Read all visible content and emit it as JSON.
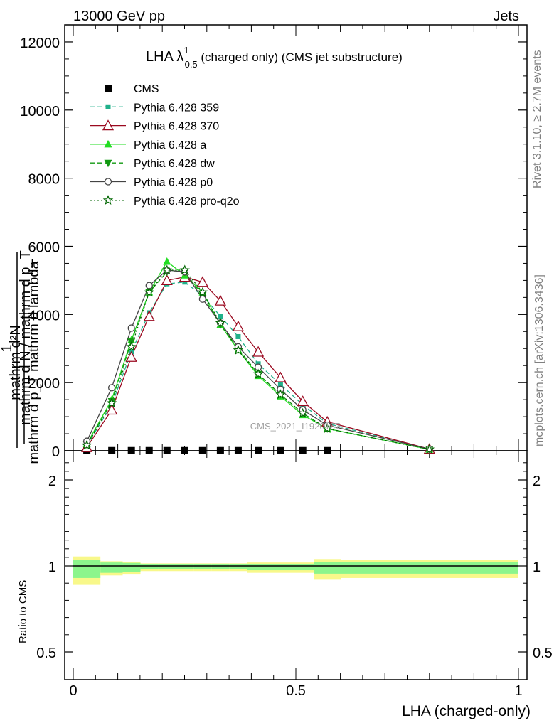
{
  "header": {
    "left": "13000 GeV pp",
    "right": "Jets"
  },
  "side_labels": {
    "rivet": "Rivet 3.1.10, ≥ 2.7M events",
    "mcplots": "mcplots.cern.ch [arXiv:1306.3436]"
  },
  "watermark": "CMS_2021_I1920187",
  "chart_data": [
    {
      "type": "line",
      "title_main": "LHA λ",
      "title_sup": "1",
      "title_sub": "0.5",
      "title_rest": " (charged only) (CMS jet substructure)",
      "ylabel_num": "mathrm d²N",
      "ylabel_den": "mathrm d p_T mathrm d lambda",
      "ylabel_num2": "1",
      "ylabel_den2": "mathrm d N / mathrm d p_T",
      "xlim": [
        0,
        1
      ],
      "ylim": [
        0,
        12500
      ],
      "yticks": [
        0,
        2000,
        4000,
        6000,
        8000,
        10000,
        12000
      ],
      "ytick_labels": [
        "0",
        "2000",
        "4000",
        "6000",
        "8000",
        "10000",
        "12000"
      ],
      "legend_position": "top-left",
      "x": [
        0.0305,
        0.0865,
        0.1305,
        0.1705,
        0.2105,
        0.2505,
        0.2905,
        0.3305,
        0.3705,
        0.4155,
        0.4655,
        0.5155,
        0.5705,
        0.8
      ],
      "series": [
        {
          "name": "CMS",
          "color": "#000000",
          "marker": "square",
          "line": "none",
          "values": [
            5,
            5,
            5,
            5,
            5,
            5,
            5,
            5,
            5,
            5,
            5,
            5,
            5,
            null
          ]
        },
        {
          "name": "Pythia 6.428 359",
          "color": "#20b08a",
          "marker": "square-small",
          "line": "dashed",
          "values": [
            150,
            1350,
            2900,
            4050,
            4900,
            4950,
            4550,
            3950,
            3350,
            2550,
            1950,
            1350,
            800,
            50
          ]
        },
        {
          "name": "Pythia 6.428 370",
          "color": "#9b0a20",
          "marker": "triangle-open",
          "line": "solid",
          "values": [
            100,
            1200,
            2750,
            3950,
            5000,
            5100,
            4950,
            4400,
            3650,
            2900,
            2150,
            1450,
            850,
            50
          ]
        },
        {
          "name": "Pythia 6.428 a",
          "color": "#22dd22",
          "marker": "triangle",
          "line": "solid",
          "values": [
            200,
            1500,
            3250,
            4650,
            5550,
            5150,
            4650,
            3700,
            2950,
            2200,
            1600,
            1050,
            650,
            40
          ]
        },
        {
          "name": "Pythia 6.428 dw",
          "color": "#119911",
          "marker": "triangle-down",
          "line": "dashed",
          "values": [
            180,
            1450,
            3200,
            4650,
            5250,
            5250,
            4550,
            3700,
            3000,
            2250,
            1650,
            1100,
            650,
            40
          ]
        },
        {
          "name": "Pythia 6.428 p0",
          "color": "#444444",
          "marker": "circle-open",
          "line": "solid",
          "values": [
            280,
            1850,
            3600,
            4850,
            5300,
            5250,
            4450,
            3750,
            3050,
            2450,
            1800,
            1200,
            750,
            50
          ]
        },
        {
          "name": "Pythia 6.428 pro-q2o",
          "color": "#006600",
          "marker": "star",
          "line": "dotted",
          "values": [
            160,
            1400,
            3050,
            4650,
            5300,
            5300,
            4650,
            3750,
            2950,
            2250,
            1650,
            1100,
            650,
            40
          ]
        }
      ]
    },
    {
      "type": "area",
      "ylabel": "Ratio to CMS",
      "xlabel": "LHA (charged-only)",
      "xlim": [
        0,
        1
      ],
      "ylim": [
        0.35,
        2.3
      ],
      "xticks": [
        0,
        0.5,
        1
      ],
      "xtick_labels": [
        "0",
        "0.5",
        "1"
      ],
      "yticks": [
        0.5,
        1,
        2
      ],
      "ytick_labels": [
        "0.5",
        "1",
        "2"
      ],
      "bins": [
        0,
        0.061,
        0.111,
        0.151,
        0.191,
        0.231,
        0.271,
        0.311,
        0.351,
        0.391,
        0.441,
        0.491,
        0.541,
        0.601,
        1.0
      ],
      "band_inner_color": "#8cf58c",
      "band_outer_color": "#f8f88a",
      "inner_lo": [
        0.93,
        0.96,
        0.965,
        0.98,
        0.98,
        0.98,
        0.98,
        0.98,
        0.98,
        0.975,
        0.975,
        0.975,
        0.955,
        0.955
      ],
      "inner_hi": [
        1.07,
        1.04,
        1.035,
        1.02,
        1.02,
        1.02,
        1.02,
        1.02,
        1.02,
        1.025,
        1.025,
        1.025,
        1.045,
        1.045
      ],
      "outer_lo": [
        0.89,
        0.945,
        0.95,
        0.97,
        0.97,
        0.97,
        0.97,
        0.97,
        0.97,
        0.96,
        0.96,
        0.96,
        0.92,
        0.93
      ],
      "outer_hi": [
        1.11,
        1.055,
        1.05,
        1.03,
        1.03,
        1.03,
        1.03,
        1.03,
        1.03,
        1.04,
        1.04,
        1.04,
        1.08,
        1.07
      ],
      "reference_value": 1
    }
  ]
}
